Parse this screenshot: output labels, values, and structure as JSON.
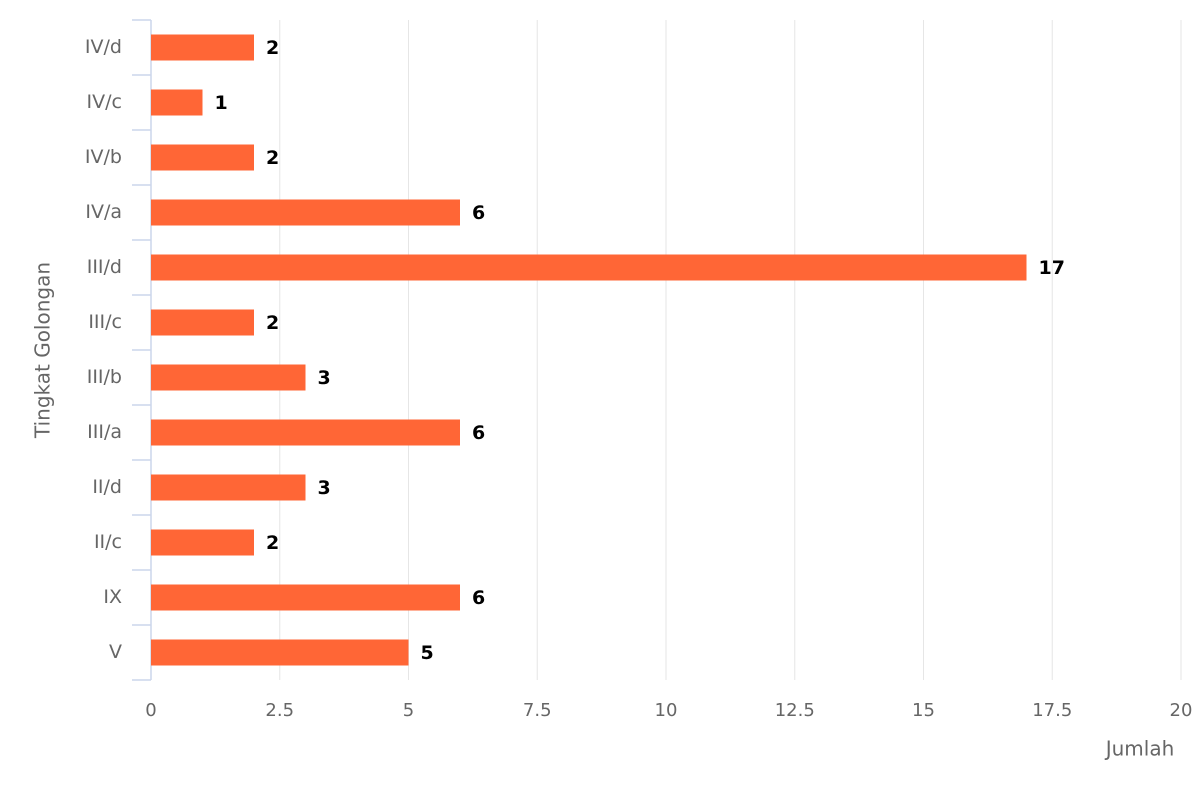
{
  "chart_data": {
    "type": "bar",
    "orientation": "horizontal",
    "categories": [
      "IV/d",
      "IV/c",
      "IV/b",
      "IV/a",
      "III/d",
      "III/c",
      "III/b",
      "III/a",
      "II/d",
      "II/c",
      "IX",
      "V"
    ],
    "values": [
      2,
      1,
      2,
      6,
      17,
      2,
      3,
      6,
      3,
      2,
      6,
      5
    ],
    "color": "#ff6636",
    "xlim": [
      0,
      20
    ],
    "xticks": [
      0,
      2.5,
      5,
      7.5,
      10,
      12.5,
      15,
      17.5,
      20
    ],
    "grid": true,
    "x_label": "Jumlah",
    "y_label": "Tingkat Golongan"
  }
}
